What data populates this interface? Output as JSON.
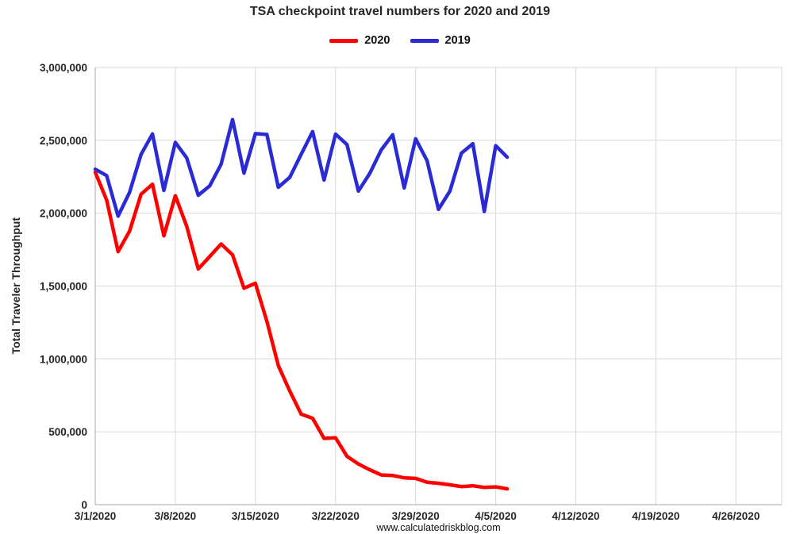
{
  "chart_data": {
    "type": "line",
    "title": "TSA checkpoint travel numbers for 2020 and 2019",
    "ylabel": "Total Traveler Throughput",
    "xlabel": "",
    "footer": "www.calculatedriskblog.com",
    "ylim": [
      0,
      3000000
    ],
    "y_tick_step": 500000,
    "grid": true,
    "legend_position": "top-center",
    "x_domain_days": [
      0,
      60
    ],
    "x_tick_day_offsets": [
      0,
      7,
      14,
      21,
      28,
      35,
      42,
      49,
      56
    ],
    "x_tick_labels": [
      "3/1/2020",
      "3/8/2020",
      "3/15/2020",
      "3/22/2020",
      "3/29/2020",
      "4/5/2020",
      "4/12/2020",
      "4/19/2020",
      "4/26/2020"
    ],
    "colors": {
      "grid": "#D9D9D9",
      "axis": "#A6A6A6",
      "text": "#262626"
    },
    "dates": [
      "3/1/2020",
      "3/2/2020",
      "3/3/2020",
      "3/4/2020",
      "3/5/2020",
      "3/6/2020",
      "3/7/2020",
      "3/8/2020",
      "3/9/2020",
      "3/10/2020",
      "3/11/2020",
      "3/12/2020",
      "3/13/2020",
      "3/14/2020",
      "3/15/2020",
      "3/16/2020",
      "3/17/2020",
      "3/18/2020",
      "3/19/2020",
      "3/20/2020",
      "3/21/2020",
      "3/22/2020",
      "3/23/2020",
      "3/24/2020",
      "3/25/2020",
      "3/26/2020",
      "3/27/2020",
      "3/28/2020",
      "3/29/2020",
      "3/30/2020",
      "3/31/2020",
      "4/1/2020",
      "4/2/2020",
      "4/3/2020",
      "4/4/2020",
      "4/5/2020",
      "4/6/2020"
    ],
    "series": [
      {
        "name": "2020",
        "color": "#FF0000",
        "values": [
          2280522,
          2089641,
          1736393,
          1877401,
          2130015,
          2198517,
          1844811,
          2119867,
          1909363,
          1617220,
          1702686,
          1788456,
          1714372,
          1485553,
          1519192,
          1257823,
          953699,
          779631,
          620883,
          593167,
          454516,
          458389,
          331431,
          279018,
          239234,
          203858,
          199644,
          184027,
          180002,
          154080,
          146348,
          136023,
          124021,
          129763,
          118302,
          122029,
          108310
        ]
      },
      {
        "name": "2019",
        "color": "#2B2BD5",
        "values": [
          2301439,
          2257920,
          1979558,
          2143619,
          2402692,
          2543689,
          2156262,
          2485430,
          2378673,
          2122898,
          2187298,
          2335552,
          2642083,
          2274658,
          2545742,
          2539960,
          2177929,
          2246163,
          2404342,
          2559307,
          2227181,
          2542643,
          2470969,
          2151913,
          2273811,
          2434370,
          2538384,
          2172920,
          2510294,
          2360053,
          2026256,
          2151626,
          2411500,
          2476884,
          2011715,
          2462929,
          2384091
        ]
      }
    ]
  }
}
